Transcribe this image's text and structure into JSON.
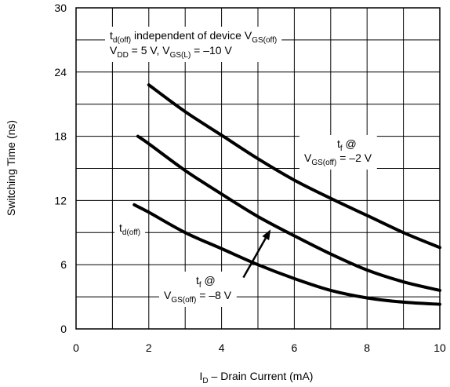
{
  "chart_data": {
    "type": "line",
    "xlabel": {
      "base": "I",
      "sub": "D",
      "rest": " – Drain Current (mA)"
    },
    "ylabel": "Switching Time (ns)",
    "xlim": [
      0,
      10
    ],
    "ylim": [
      0,
      30
    ],
    "xticks": [
      0,
      2,
      4,
      6,
      8,
      10
    ],
    "yticks": [
      0,
      6,
      12,
      18,
      24,
      30
    ],
    "grid": true,
    "series": [
      {
        "x": [
          2,
          3,
          4,
          5,
          6,
          7,
          8,
          9,
          10
        ],
        "y": [
          22.8,
          20.3,
          18.1,
          15.9,
          13.9,
          12.2,
          10.6,
          9.0,
          7.6
        ]
      },
      {
        "x": [
          1.7,
          2,
          3,
          4,
          5,
          6,
          7,
          8,
          9,
          10
        ],
        "y": [
          18.0,
          17.3,
          14.8,
          12.6,
          10.5,
          8.7,
          7.0,
          5.5,
          4.4,
          3.6
        ]
      },
      {
        "x": [
          1.6,
          2,
          3,
          4,
          5,
          6,
          7,
          8,
          9,
          10
        ],
        "y": [
          11.6,
          10.9,
          9.0,
          7.5,
          6.0,
          4.7,
          3.6,
          2.9,
          2.5,
          2.3
        ]
      }
    ],
    "annotations": {
      "header_line1": {
        "t": "t",
        "tsub": "d(off)",
        "mid": " independent of device V",
        "vsub": "GS(off)"
      },
      "header_line2": {
        "v1": "V",
        "v1sub": "DD",
        "mid": " = 5 V, V",
        "v2sub": "GS(L)",
        "end": " = –10 V"
      },
      "tf_top": {
        "t": "t",
        "tsub": "f",
        "at": " @",
        "v": "V",
        "vsub": "GS(off)",
        "val": " = –2 V"
      },
      "tdoff": {
        "t": "t",
        "tsub": "d(off)"
      },
      "tf_bottom": {
        "t": "t",
        "tsub": "f",
        "at": " @",
        "v": "V",
        "vsub": "GS(off)",
        "val": " = –8 V"
      },
      "arrow": {
        "from": [
          4.6,
          4.8
        ],
        "to": [
          5.35,
          9.3
        ]
      }
    }
  }
}
